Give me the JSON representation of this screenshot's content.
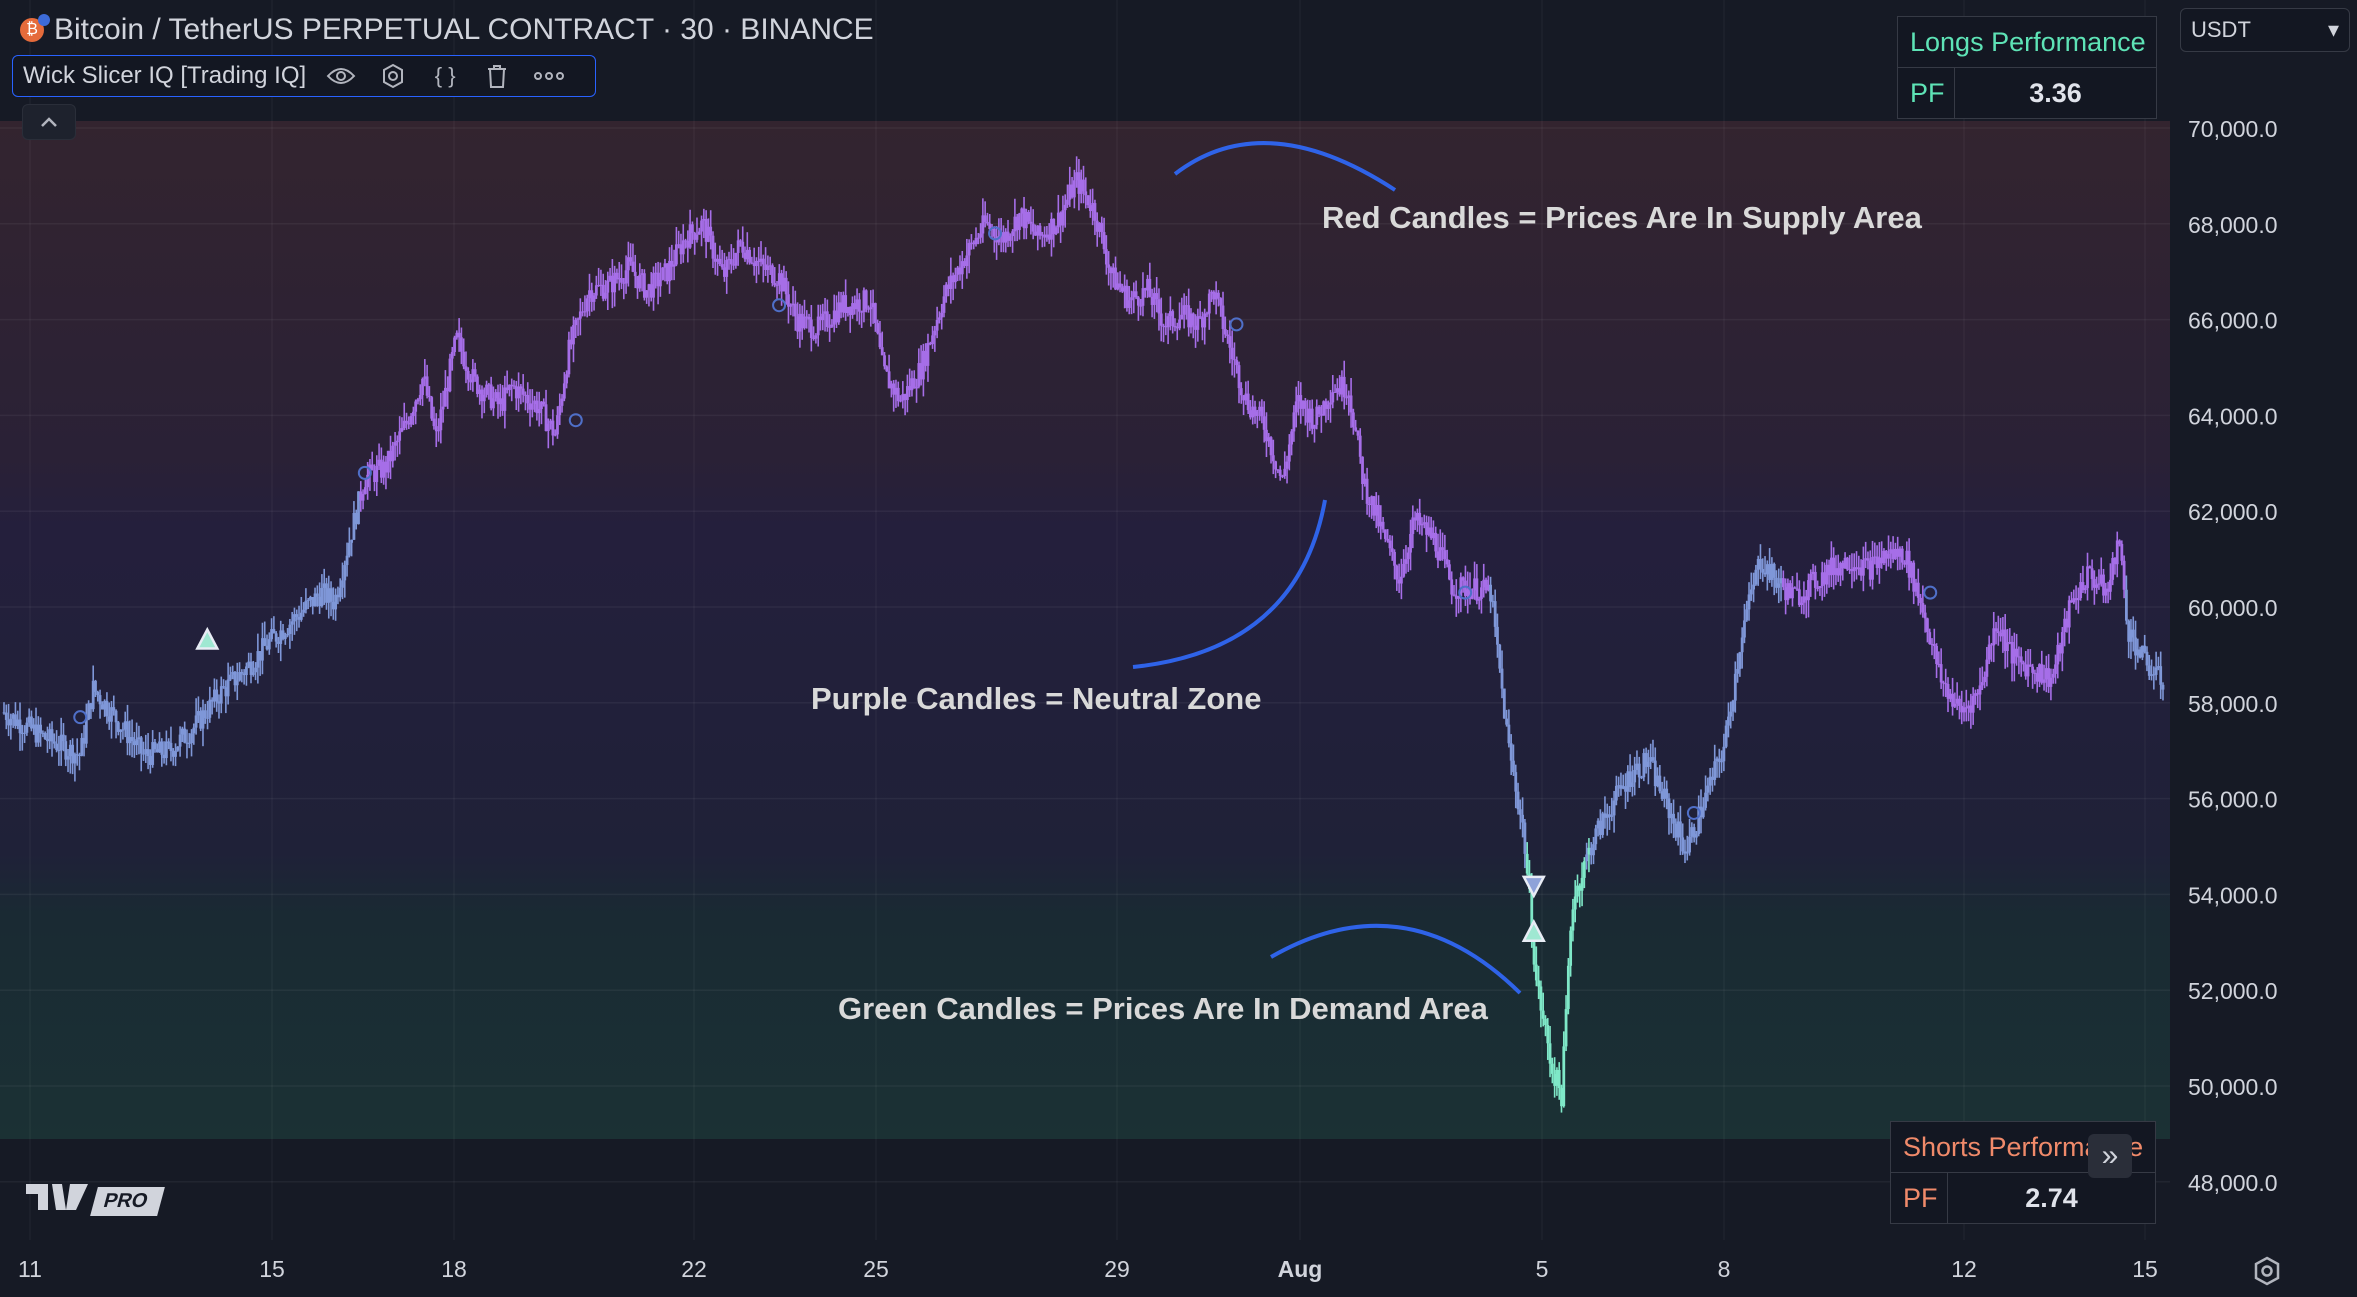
{
  "header": {
    "symbol_title": "Bitcoin / TetherUS PERPETUAL CONTRACT · 30 · BINANCE",
    "coin_icon": "bitcoin-icon"
  },
  "indicator": {
    "name": "Wick Slicer IQ [Trading IQ]",
    "icons": [
      "eye-icon",
      "settings-icon",
      "source-code-icon",
      "trash-icon",
      "more-icon"
    ]
  },
  "currency": {
    "selected": "USDT",
    "chevron": "▾"
  },
  "longs_table": {
    "title": "Longs Performance",
    "key": "PF",
    "value": "3.36"
  },
  "shorts_table": {
    "title": "Shorts Performance",
    "key": "PF",
    "value": "2.74"
  },
  "logo": {
    "pro_label": "PRO"
  },
  "colors": {
    "background": "#161a25",
    "supply_zone": "#3a2631",
    "neutral_zone": "#231f3d",
    "demand_zone": "#1a3236",
    "neutral_candle": "#a66ee8",
    "cool_candle": "#7f97d8",
    "demand_candle": "#7fe8c8",
    "annotation_arc": "#2f63e8",
    "longs_accent": "#5ee3b6",
    "shorts_accent": "#f08a6a"
  },
  "chart_data": {
    "type": "line",
    "style": "candlestick",
    "x_ticks": [
      "11",
      "15",
      "18",
      "22",
      "25",
      "29",
      "Aug",
      "5",
      "8",
      "12",
      "15"
    ],
    "y_ticks": [
      "70,000.0",
      "68,000.0",
      "66,000.0",
      "64,000.0",
      "62,000.0",
      "60,000.0",
      "58,000.0",
      "56,000.0",
      "54,000.0",
      "52,000.0",
      "50,000.0",
      "48,000.0"
    ],
    "ylim": [
      47000,
      71000
    ],
    "grid": true,
    "series": [
      {
        "values": [
          [
            0,
            57800
          ],
          [
            1.5,
            57300
          ],
          [
            3,
            56900
          ],
          [
            3.5,
            58300
          ],
          [
            4.5,
            57600
          ],
          [
            5.5,
            56900
          ],
          [
            6.5,
            57000
          ],
          [
            7.5,
            57500
          ],
          [
            8.5,
            58200
          ],
          [
            9.5,
            58700
          ],
          [
            10.5,
            59300
          ],
          [
            11.5,
            59800
          ],
          [
            12.5,
            60300
          ],
          [
            13,
            60100
          ],
          [
            13.5,
            61200
          ],
          [
            14.2,
            62700
          ],
          [
            15,
            62900
          ],
          [
            15.8,
            63800
          ],
          [
            16.5,
            64800
          ],
          [
            17,
            63500
          ],
          [
            17.8,
            65600
          ],
          [
            18.5,
            64700
          ],
          [
            19.5,
            64200
          ],
          [
            20,
            64600
          ],
          [
            21,
            64200
          ],
          [
            21.7,
            63600
          ],
          [
            22.2,
            65300
          ],
          [
            23,
            66600
          ],
          [
            23.8,
            66700
          ],
          [
            24.6,
            67100
          ],
          [
            25.3,
            66600
          ],
          [
            26.1,
            67000
          ],
          [
            26.8,
            67700
          ],
          [
            27.5,
            68000
          ],
          [
            28.3,
            66900
          ],
          [
            29,
            67600
          ],
          [
            29.8,
            67100
          ],
          [
            30.5,
            66900
          ],
          [
            31.2,
            66000
          ],
          [
            32,
            65800
          ],
          [
            33,
            66300
          ],
          [
            34.1,
            66400
          ],
          [
            34.6,
            64900
          ],
          [
            35.3,
            64300
          ],
          [
            36.1,
            65000
          ],
          [
            37,
            66500
          ],
          [
            37.8,
            67300
          ],
          [
            38.6,
            68000
          ],
          [
            39.3,
            67700
          ],
          [
            40,
            68200
          ],
          [
            40.7,
            67700
          ],
          [
            41.5,
            68100
          ],
          [
            42.2,
            68900
          ],
          [
            42.9,
            68300
          ],
          [
            43.6,
            66900
          ],
          [
            44.3,
            66400
          ],
          [
            45,
            66600
          ],
          [
            45.7,
            65900
          ],
          [
            46.4,
            66100
          ],
          [
            47,
            65900
          ],
          [
            47.6,
            66600
          ],
          [
            48.3,
            65300
          ],
          [
            48.9,
            64300
          ],
          [
            49.6,
            63800
          ],
          [
            50.3,
            62600
          ],
          [
            50.9,
            64300
          ],
          [
            51.6,
            63900
          ],
          [
            52.3,
            64600
          ],
          [
            52.9,
            64600
          ],
          [
            53.5,
            62600
          ],
          [
            54.2,
            61600
          ],
          [
            54.9,
            60600
          ],
          [
            55.5,
            61800
          ],
          [
            56.3,
            61400
          ],
          [
            57,
            60400
          ],
          [
            57.8,
            60400
          ],
          [
            58.5,
            60300
          ],
          [
            59.2,
            57100
          ],
          [
            59.8,
            55300
          ],
          [
            60.3,
            52200
          ],
          [
            60.9,
            50400
          ],
          [
            61.3,
            49800
          ],
          [
            61.7,
            53800
          ],
          [
            62.5,
            55100
          ],
          [
            63.3,
            55900
          ],
          [
            64,
            56500
          ],
          [
            64.7,
            56800
          ],
          [
            65.4,
            55900
          ],
          [
            66.2,
            54900
          ],
          [
            67,
            56100
          ],
          [
            67.7,
            57100
          ],
          [
            68.4,
            59500
          ],
          [
            69.1,
            61000
          ],
          [
            69.8,
            60500
          ],
          [
            70.5,
            60200
          ],
          [
            71.2,
            60500
          ],
          [
            71.9,
            60800
          ],
          [
            72.7,
            61000
          ],
          [
            73.4,
            60800
          ],
          [
            74.1,
            61100
          ],
          [
            74.8,
            61100
          ],
          [
            75.5,
            60000
          ],
          [
            76.2,
            58500
          ],
          [
            77,
            57800
          ],
          [
            77.7,
            58200
          ],
          [
            78.4,
            59700
          ],
          [
            79.1,
            58900
          ],
          [
            79.9,
            58700
          ],
          [
            80.6,
            58500
          ],
          [
            81.3,
            60000
          ],
          [
            82,
            60700
          ],
          [
            82.8,
            60300
          ],
          [
            83.2,
            61500
          ],
          [
            83.6,
            59500
          ],
          [
            84.3,
            58800
          ],
          [
            85,
            58400
          ]
        ]
      }
    ],
    "markers": [
      {
        "label": "long-entry-triangle",
        "x": 8,
        "y": 59300,
        "direction": "up"
      },
      {
        "label": "short-entry-triangle",
        "x": 60.2,
        "y": 54200,
        "direction": "down"
      },
      {
        "label": "long-entry-triangle",
        "x": 60.2,
        "y": 53200,
        "direction": "up"
      }
    ],
    "zones": [
      {
        "label": "supply",
        "from": 64500,
        "to": 71000
      },
      {
        "label": "neutral",
        "from": 54500,
        "to": 64500
      },
      {
        "label": "demand",
        "from": 47000,
        "to": 54500
      }
    ],
    "annotations": [
      "Red Candles = Prices Are In Supply Area",
      "Purple Candles = Neutral Zone",
      "Green Candles = Prices Are In Demand Area"
    ]
  }
}
